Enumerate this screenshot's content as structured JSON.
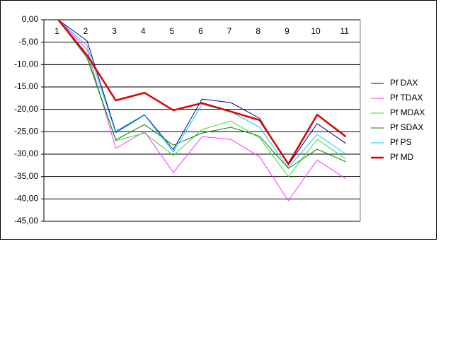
{
  "chart_data": {
    "type": "line",
    "categories": [
      "1",
      "2",
      "3",
      "4",
      "5",
      "6",
      "7",
      "8",
      "9",
      "10",
      "11"
    ],
    "series": [
      {
        "name": "Pf DAX",
        "color": "#000080",
        "values": [
          0,
          -4.7,
          -25,
          -21.2,
          -29,
          -17.7,
          -18.5,
          -22,
          -32.4,
          -23.2,
          -27.6
        ]
      },
      {
        "name": "Pf TDAX",
        "color": "#ff33ff",
        "values": [
          0,
          -6.6,
          -28.7,
          -25,
          -34.1,
          -26.1,
          -26.7,
          -30.6,
          -40.4,
          -31.3,
          -35.5
        ]
      },
      {
        "name": "Pf MDAX",
        "color": "#33dd33",
        "values": [
          0,
          -7.9,
          -27,
          -25.3,
          -30.3,
          -24.5,
          -22.6,
          -26.4,
          -35,
          -26.7,
          -31.1
        ]
      },
      {
        "name": "Pf SDAX",
        "color": "#008000",
        "values": [
          0,
          -8.5,
          -26.8,
          -23.4,
          -28,
          -25.3,
          -24,
          -26,
          -33.2,
          -28.9,
          -31.7
        ]
      },
      {
        "name": "Pf PS",
        "color": "#00ccff",
        "values": [
          0,
          -5.8,
          -25.3,
          -21.3,
          -29.5,
          -18.9,
          -20.5,
          -24,
          -33,
          -25.6,
          -30
        ]
      },
      {
        "name": "Pf MD",
        "color": "#dd0000",
        "values": [
          0,
          -7.9,
          -18,
          -16.3,
          -20.2,
          -18.6,
          -20.5,
          -22.4,
          -32.2,
          -21.2,
          -26.1
        ]
      }
    ],
    "ylim": [
      -45,
      0
    ],
    "yticks": [
      {
        "value": 0,
        "label": "0,00"
      },
      {
        "value": -5,
        "label": "-5,00"
      },
      {
        "value": -10,
        "label": "-10,00"
      },
      {
        "value": -15,
        "label": "-15,00"
      },
      {
        "value": -20,
        "label": "-20,00"
      },
      {
        "value": -25,
        "label": "-25,00"
      },
      {
        "value": -30,
        "label": "-30,00"
      },
      {
        "value": -35,
        "label": "-35,00"
      },
      {
        "value": -40,
        "label": "-40,00"
      },
      {
        "value": -45,
        "label": "-45,00"
      }
    ],
    "grid": true,
    "legend": "right"
  }
}
